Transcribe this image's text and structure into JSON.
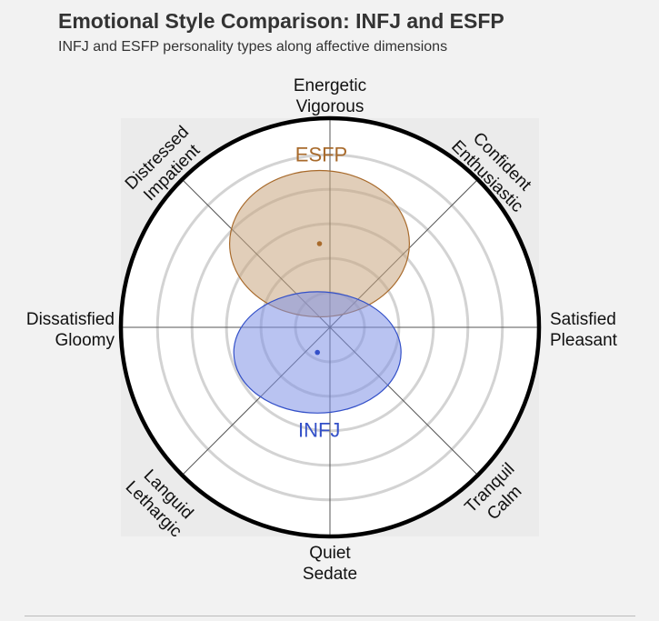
{
  "title": "Emotional Style Comparison: INFJ and ESFP",
  "subtitle": "INFJ and ESFP personality types along affective dimensions",
  "chart_data": {
    "type": "scatter",
    "subtype": "polar-affect-circumplex",
    "grid": true,
    "radial_range": [
      0,
      1
    ],
    "axes": [
      {
        "name": "top",
        "angle_deg": 90,
        "lines": [
          "Energetic",
          "Vigorous"
        ]
      },
      {
        "name": "top-right",
        "angle_deg": 45,
        "lines": [
          "Confident",
          "Enthusiastic"
        ]
      },
      {
        "name": "right",
        "angle_deg": 0,
        "lines": [
          "Satisfied",
          "Pleasant"
        ]
      },
      {
        "name": "bottom-right",
        "angle_deg": -45,
        "lines": [
          "Tranquil",
          "Calm"
        ]
      },
      {
        "name": "bottom",
        "angle_deg": -90,
        "lines": [
          "Quiet",
          "Sedate"
        ]
      },
      {
        "name": "bottom-left",
        "angle_deg": -135,
        "lines": [
          "Languid",
          "Lethargic"
        ]
      },
      {
        "name": "left",
        "angle_deg": 180,
        "lines": [
          "Dissatisfied",
          "Gloomy"
        ]
      },
      {
        "name": "top-left",
        "angle_deg": 135,
        "lines": [
          "Distressed",
          "Impatient"
        ]
      }
    ],
    "series": [
      {
        "name": "ESFP",
        "x": -0.05,
        "y": 0.4,
        "x_spread": 0.43,
        "y_spread": 0.35,
        "color": "#a86a2b",
        "fill": "#c9a67f",
        "label_position": "above"
      },
      {
        "name": "INFJ",
        "x": -0.06,
        "y": -0.12,
        "x_spread": 0.4,
        "y_spread": 0.29,
        "color": "#3350c8",
        "fill": "#7f91e6",
        "label_position": "below"
      }
    ]
  }
}
